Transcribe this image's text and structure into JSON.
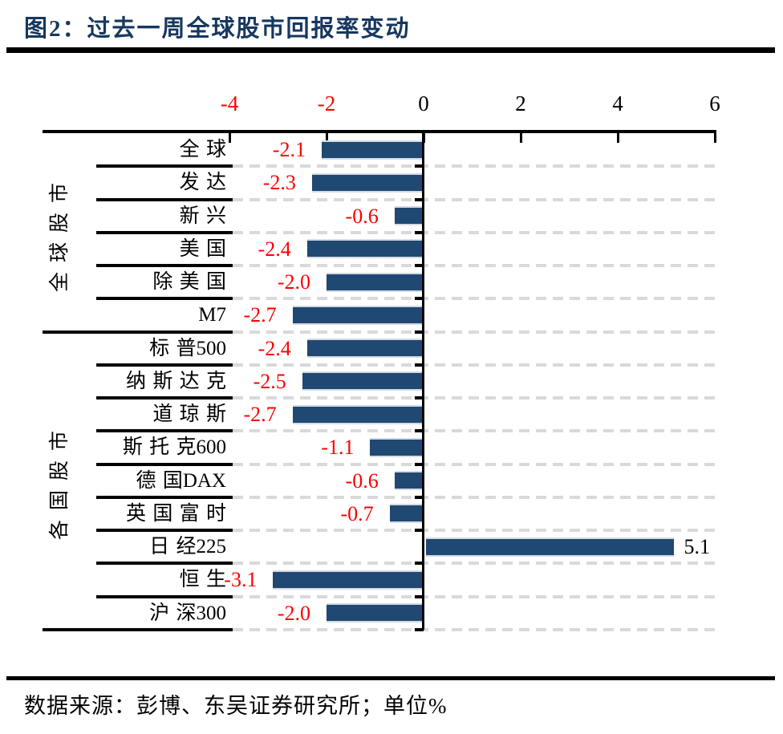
{
  "title": "图2：过去一周全球股市回报率变动",
  "source": "数据来源：彭博、东吴证券研究所；单位%",
  "colors": {
    "bar": "#1f4873",
    "title": "#17375e",
    "negative_label": "#ff0000",
    "positive_label": "#000000",
    "negative_tick": "#ff0000",
    "positive_tick": "#000000",
    "gridline": "#d9d9d9",
    "axis": "#000000"
  },
  "chart_data": {
    "type": "bar",
    "orientation": "horizontal",
    "title": "过去一周全球股市回报率变动",
    "unit": "%",
    "xlim": [
      -4,
      6
    ],
    "xticks": [
      -4,
      -2,
      0,
      2,
      4,
      6
    ],
    "grid": "dashed-horizontal",
    "legend": "none",
    "groups": [
      {
        "label": "全球股市",
        "rows": [
          {
            "label": "全球",
            "value": -2.1
          },
          {
            "label": "发达",
            "value": -2.3
          },
          {
            "label": "新兴",
            "value": -0.6
          },
          {
            "label": "美国",
            "value": -2.4
          },
          {
            "label": "除美国",
            "value": -2.0
          },
          {
            "label": "M7",
            "value": -2.7
          }
        ]
      },
      {
        "label": "各国股市",
        "rows": [
          {
            "label": "标普500",
            "value": -2.4
          },
          {
            "label": "纳斯达克",
            "value": -2.5
          },
          {
            "label": "道琼斯",
            "value": -2.7
          },
          {
            "label": "斯托克600",
            "value": -1.1
          },
          {
            "label": "德国DAX",
            "value": -0.6
          },
          {
            "label": "英国富时",
            "value": -0.7
          },
          {
            "label": "日经225",
            "value": 5.1
          },
          {
            "label": "恒生",
            "value": -3.1
          },
          {
            "label": "沪深300",
            "value": -2.0
          }
        ]
      }
    ]
  }
}
